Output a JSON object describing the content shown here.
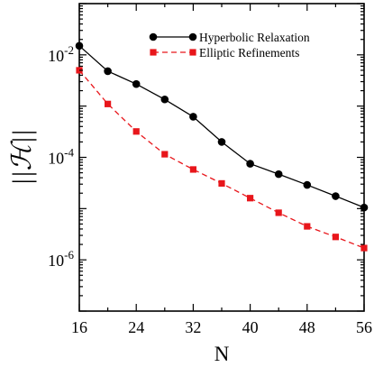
{
  "chart_data": {
    "type": "line",
    "title": "",
    "xlabel": "N",
    "ylabel": "||ℋ||",
    "x_scale": "linear",
    "y_scale": "log",
    "xlim": [
      16,
      56
    ],
    "ylim": [
      1e-07,
      0.1
    ],
    "x_ticks": [
      16,
      24,
      32,
      40,
      48,
      56
    ],
    "y_ticks": [
      {
        "value": 0.01,
        "base": "10",
        "exp": "-2"
      },
      {
        "value": 0.0001,
        "base": "10",
        "exp": "-4"
      },
      {
        "value": 1e-06,
        "base": "10",
        "exp": "-6"
      }
    ],
    "grid": false,
    "legend_position": "top-right",
    "series": [
      {
        "name": "Hyperbolic Relaxation",
        "color": "#000000",
        "line_style": "solid",
        "marker": "circle",
        "x": [
          16,
          20,
          24,
          28,
          32,
          36,
          40,
          44,
          48,
          52,
          56
        ],
        "y": [
          0.015,
          0.0048,
          0.0027,
          0.00135,
          0.00062,
          0.0002,
          7.5e-05,
          4.7e-05,
          2.9e-05,
          1.75e-05,
          1.05e-05
        ]
      },
      {
        "name": "Elliptic Refinements",
        "color": "#e8161b",
        "line_style": "dashed",
        "marker": "square",
        "x": [
          16,
          20,
          24,
          28,
          32,
          36,
          40,
          44,
          48,
          52,
          56
        ],
        "y": [
          0.005,
          0.0011,
          0.00032,
          0.000115,
          5.8e-05,
          3.1e-05,
          1.6e-05,
          8.3e-06,
          4.5e-06,
          2.8e-06,
          1.7e-06
        ]
      }
    ]
  }
}
